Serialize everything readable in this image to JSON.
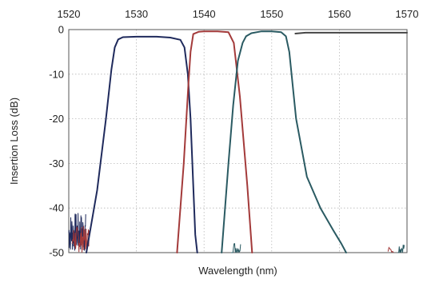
{
  "chart_data": {
    "type": "line",
    "xlabel": "Wavelength (nm)",
    "ylabel": "Insertion Loss (dB)",
    "xlim": [
      1520,
      1570
    ],
    "ylim": [
      -50,
      0
    ],
    "x_ticks": [
      "1520",
      "1530",
      "1540",
      "1550",
      "1560",
      "1570"
    ],
    "y_ticks": [
      "0",
      "-10",
      "-20",
      "-30",
      "-40",
      "-50"
    ],
    "x_axis_position": "top",
    "grid": true,
    "series": [
      {
        "color": "#1f2a5c",
        "x": [
          1522.6,
          1524.2,
          1525.5,
          1526.3,
          1526.8,
          1527.3,
          1528.0,
          1530,
          1533,
          1535,
          1536.5,
          1537.1,
          1537.6,
          1538.0,
          1538.4,
          1538.7,
          1539.0
        ],
        "y": [
          -50,
          -36,
          -20,
          -9,
          -4,
          -2.2,
          -1.7,
          -1.6,
          -1.6,
          -1.8,
          -2.3,
          -4,
          -10,
          -20,
          -35,
          -46,
          -50
        ]
      },
      {
        "color": "#a33a3a",
        "x": [
          1536.0,
          1537.0,
          1537.7,
          1538.0,
          1538.4,
          1539.2,
          1540,
          1542,
          1543.6,
          1544.4,
          1545.3,
          1546.4,
          1547.1
        ],
        "y": [
          -50,
          -30,
          -12,
          -5,
          -1,
          -0.5,
          -0.4,
          -0.4,
          -0.6,
          -3,
          -15,
          -35,
          -50
        ]
      },
      {
        "color": "#2a5a62",
        "x": [
          1542.6,
          1543.0,
          1543.6,
          1544.3,
          1545.0,
          1545.7,
          1546.2,
          1547,
          1548.5,
          1550,
          1551.4,
          1552.1,
          1552.6,
          1553.6,
          1555.2,
          1557.2,
          1559.1,
          1560.3,
          1561.0
        ],
        "y": [
          -50,
          -42,
          -30,
          -17,
          -7,
          -3,
          -1.5,
          -0.8,
          -0.4,
          -0.4,
          -0.6,
          -1.5,
          -5,
          -20,
          -33,
          -40,
          -45,
          -48,
          -50
        ]
      },
      {
        "color": "#444444",
        "x": [
          1553.5,
          1555,
          1560,
          1565,
          1570
        ],
        "y": [
          -0.9,
          -0.7,
          -0.7,
          -0.7,
          -0.7
        ]
      }
    ]
  }
}
